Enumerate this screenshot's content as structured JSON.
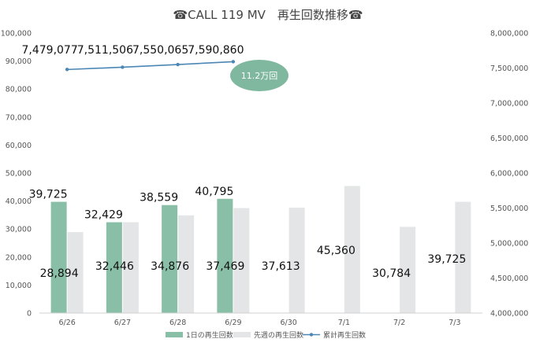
{
  "chart_data": {
    "type": "bar",
    "title": "☎CALL 119 MV　再生回数推移☎",
    "categories": [
      "6/26",
      "6/27",
      "6/28",
      "6/29",
      "6/30",
      "7/1",
      "7/2",
      "7/3"
    ],
    "series": [
      {
        "name": "1日の再生回数",
        "type": "bar",
        "axis": "left",
        "color": "#8ABFA7",
        "values": [
          39725,
          32429,
          38559,
          40795,
          null,
          null,
          null,
          null
        ],
        "labels": [
          "39,725",
          "32,429",
          "38,559",
          "40,795"
        ]
      },
      {
        "name": "先週の再生回数",
        "type": "bar",
        "axis": "left",
        "color": "#E3E5E6",
        "values": [
          28894,
          32446,
          34876,
          37469,
          37613,
          45360,
          30784,
          39725
        ],
        "labels": [
          "28,894",
          "32,446",
          "34,876",
          "37,469",
          "37,613",
          "45,360",
          "30,784",
          "39,725"
        ]
      },
      {
        "name": "累計再生回数",
        "type": "line",
        "axis": "right",
        "color": "#4A87B5",
        "values": [
          7479077,
          7511506,
          7550065,
          7590860,
          null,
          null,
          null,
          null
        ],
        "labels": [
          "7,479,077",
          "7,511,506",
          "7,550,065",
          "7,590,860"
        ]
      }
    ],
    "y_left": {
      "min": 0,
      "max": 100000,
      "ticks": [
        0,
        10000,
        20000,
        30000,
        40000,
        50000,
        60000,
        70000,
        80000,
        90000,
        100000
      ],
      "tick_labels": [
        "0",
        "10,000",
        "20,000",
        "30,000",
        "40,000",
        "50,000",
        "60,000",
        "70,000",
        "80,000",
        "90,000",
        "100,000"
      ]
    },
    "y_right": {
      "min": 4000000,
      "max": 8000000,
      "ticks": [
        4000000,
        4500000,
        5000000,
        5500000,
        6000000,
        6500000,
        7000000,
        7500000,
        8000000
      ],
      "tick_labels": [
        "4,000,000",
        "4,500,000",
        "5,000,000",
        "5,500,000",
        "6,000,000",
        "6,500,000",
        "7,000,000",
        "7,500,000",
        "8,000,000"
      ]
    },
    "grid": false,
    "legend_position": "bottom",
    "annotation": {
      "text": "11.2万回",
      "color": "#7FB89F"
    }
  }
}
